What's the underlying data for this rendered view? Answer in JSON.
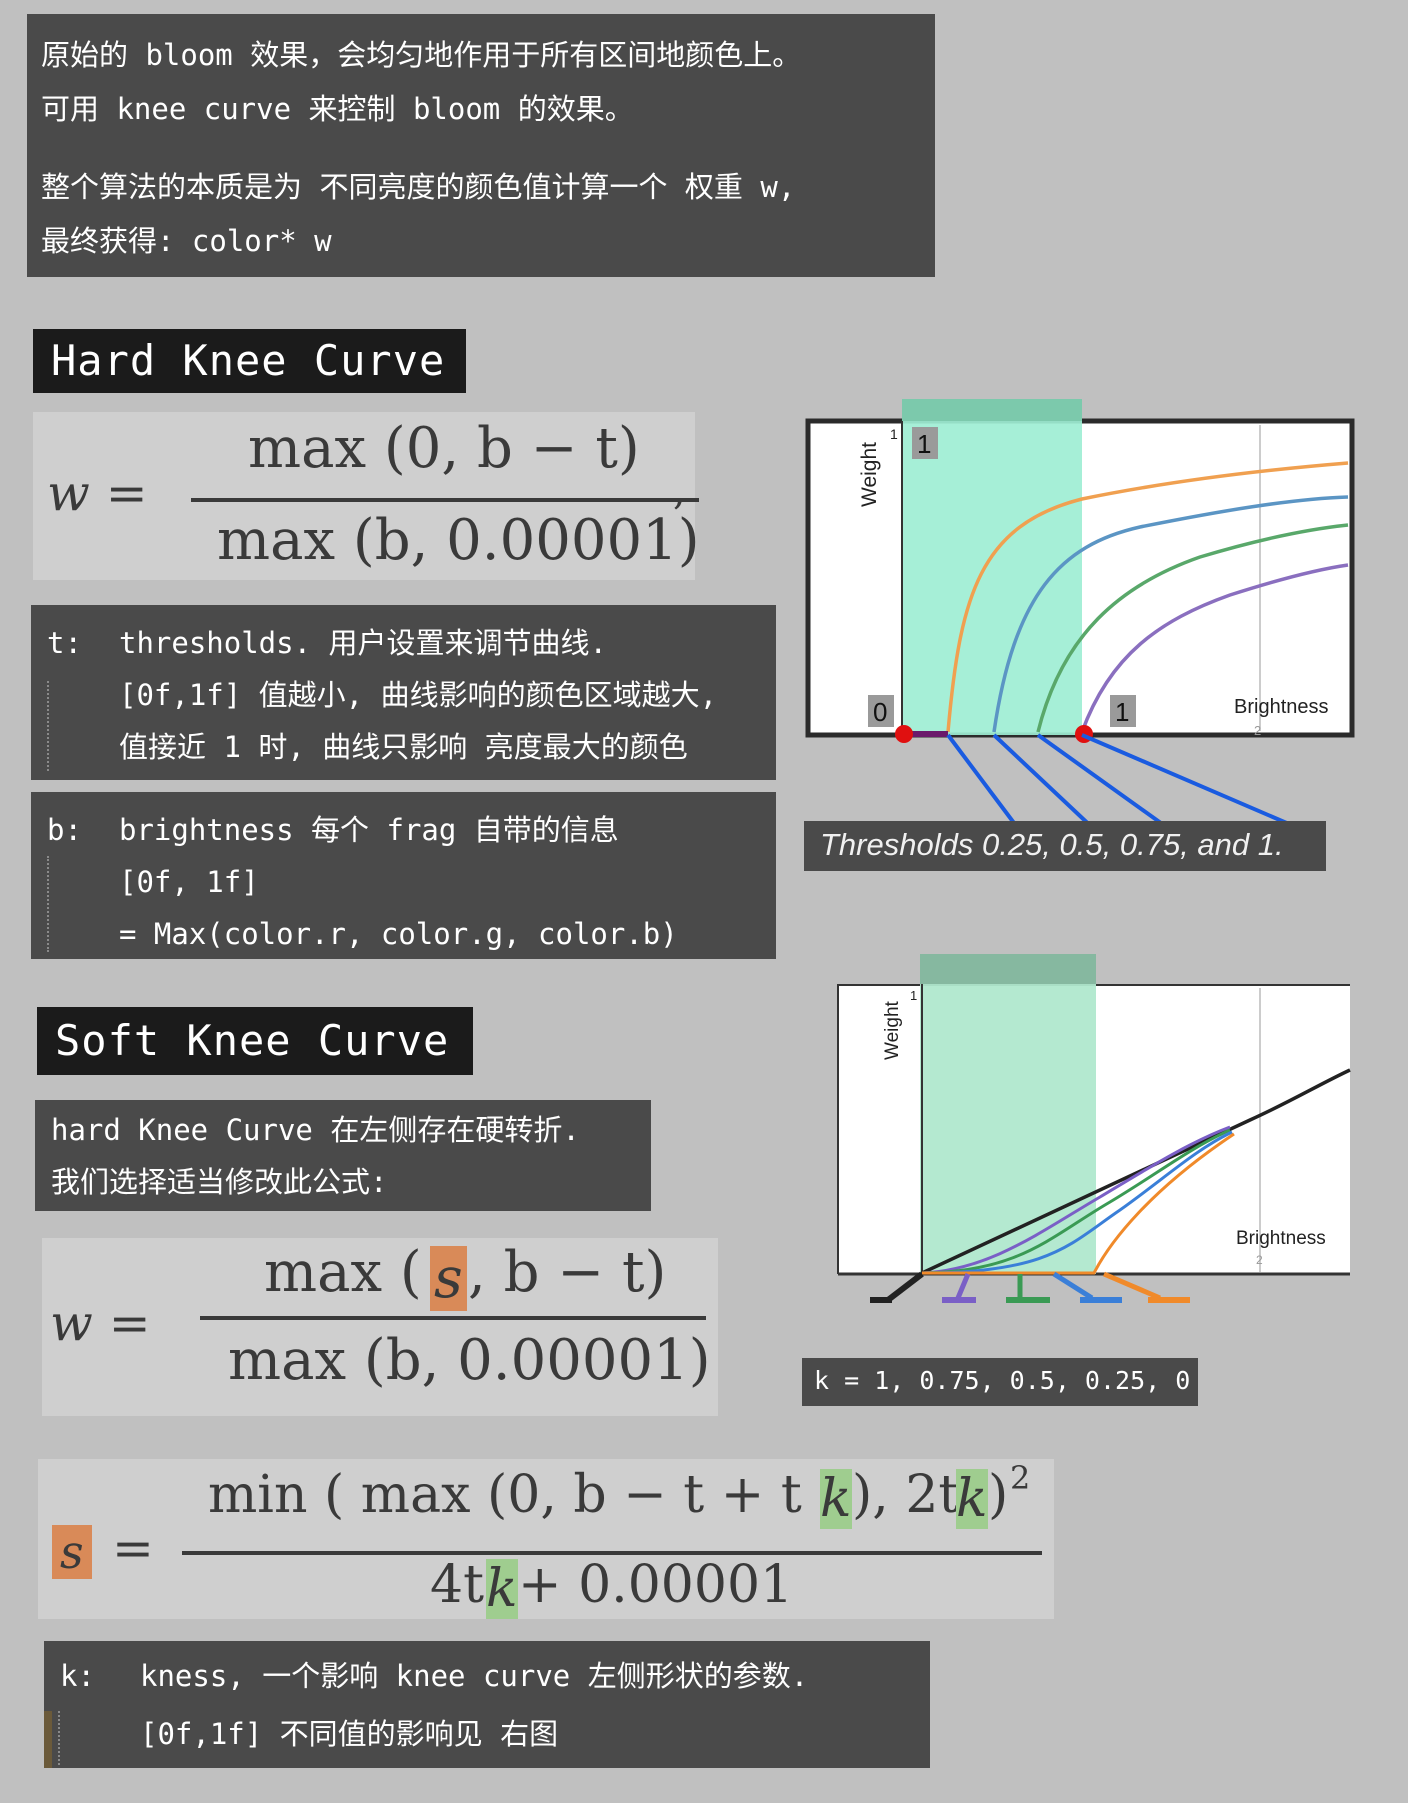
{
  "intro": {
    "line1": "原始的 bloom 效果，会均匀地作用于所有区间地颜色上。",
    "line2": "可用 knee curve 来控制 bloom 的效果。",
    "line3": "整个算法的本质是为 不同亮度的颜色值计算一个 权重 w,",
    "line4": "最终获得: color* w"
  },
  "hard": {
    "heading": "Hard Knee Curve",
    "formula": {
      "lhs": "w =",
      "num": "max (0, b − t)",
      "den": "max (b, 0.00001)",
      "trail": ","
    },
    "def_t": {
      "key": "t:",
      "lines": [
        "thresholds. 用户设置来调节曲线.",
        "[0f,1f] 值越小, 曲线影响的颜色区域越大,",
        "值接近 1 时, 曲线只影响 亮度最大的颜色"
      ]
    },
    "def_b": {
      "key": "b:",
      "lines": [
        "brightness 每个 frag 自带的信息",
        "[0f, 1f]",
        "= Max(color.r, color.g, color.b)"
      ]
    },
    "chart": {
      "ylabel": "Weight",
      "xlabel": "Brightness",
      "y_tick": "1",
      "x_tick": "2",
      "tag_top": "1",
      "tag_zero": "0",
      "tag_one": "1",
      "caption": "Thresholds 0.25, 0.5, 0.75, and 1.",
      "colors": {
        "orange": "#f0a050",
        "blue": "#5b95c4",
        "green": "#59a86a",
        "purple": "#8a6fbf",
        "band": "#9eeed4"
      }
    }
  },
  "soft": {
    "heading": "Soft Knee Curve",
    "note": [
      "hard Knee Curve 在左侧存在硬转折.",
      "我们选择适当修改此公式:"
    ],
    "formula1": {
      "lhs": "w =",
      "num_pre": "max (",
      "num_s": "s",
      "num_post": ", b − t)",
      "den": "max (b, 0.00001)"
    },
    "formula2": {
      "lhs_s": "s",
      "eq": "=",
      "num_a": "min ( max (0, b − t + t",
      "num_k1": "k",
      "num_b": "), 2t",
      "num_k2": "k",
      "num_c": ")",
      "sup": "2",
      "den_a": "4t",
      "den_k": "k",
      "den_b": " + 0.00001"
    },
    "def_k": {
      "key": "k:",
      "lines": [
        "kness, 一个影响 knee curve 左侧形状的参数.",
        "[0f,1f] 不同值的影响见 右图"
      ]
    },
    "chart": {
      "ylabel": "Weight",
      "xlabel": "Brightness",
      "y_tick": "1",
      "x_tick": "2",
      "caption": "k = 1, 0.75, 0.5, 0.25, 0",
      "colors": {
        "black": "#222222",
        "purple": "#7a5fc6",
        "green": "#3a9a54",
        "blue": "#3a7fd8",
        "orange": "#f08a2a",
        "band": "#b0e8cd"
      }
    }
  }
}
